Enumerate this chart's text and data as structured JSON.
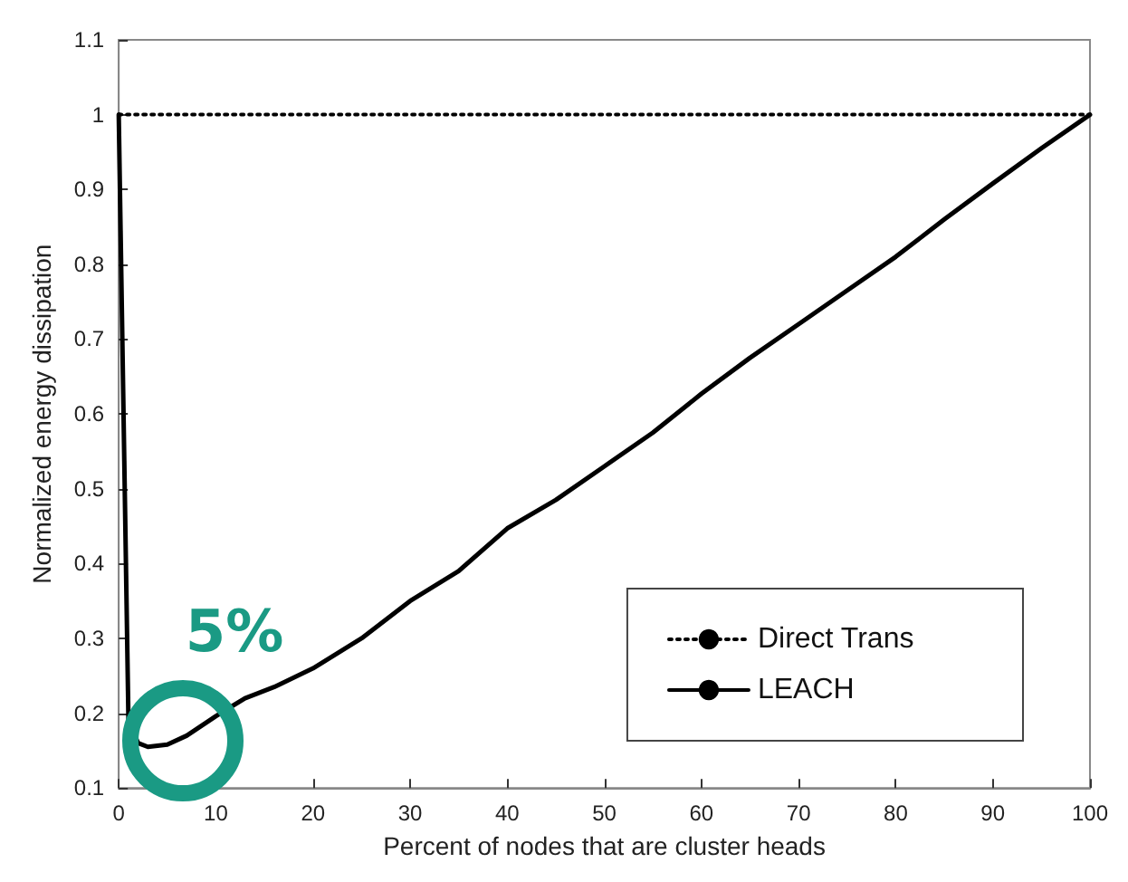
{
  "chart_data": {
    "type": "line",
    "xlabel": "Percent of nodes that are cluster heads",
    "ylabel": "Normalized energy dissipation",
    "xlim": [
      0,
      100
    ],
    "xticks": [
      0,
      10,
      20,
      30,
      40,
      50,
      60,
      70,
      80,
      90,
      100
    ],
    "ylim": [
      0.1,
      1.1
    ],
    "yticks": [
      0.1,
      0.2,
      0.3,
      0.4,
      0.5,
      0.6,
      0.7,
      0.8,
      0.9,
      1,
      1.1
    ],
    "grid": false,
    "legend": "bottom right",
    "marker": "none",
    "series": [
      {
        "name": "Direct Trans",
        "color": "#000000",
        "line_style": "dotted",
        "x": [
          0,
          100
        ],
        "values": [
          1,
          1
        ]
      },
      {
        "name": "LEACH",
        "color": "#000000",
        "line_style": "solid",
        "x": [
          0,
          1,
          2,
          3,
          5,
          7,
          10,
          13,
          16,
          20,
          25,
          30,
          35,
          40,
          45,
          50,
          55,
          60,
          65,
          70,
          75,
          80,
          85,
          90,
          95,
          100
        ],
        "values": [
          1,
          0.19,
          0.16,
          0.155,
          0.158,
          0.17,
          0.196,
          0.22,
          0.235,
          0.26,
          0.3,
          0.35,
          0.39,
          0.447,
          0.485,
          0.53,
          0.575,
          0.627,
          0.675,
          0.72,
          0.765,
          0.81,
          0.86,
          0.908,
          0.955,
          1
        ]
      }
    ],
    "annotations": [
      {
        "text": "5%",
        "x": 5,
        "y": 0.16
      }
    ]
  }
}
